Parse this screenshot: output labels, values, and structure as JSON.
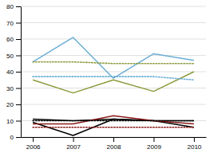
{
  "chart_data": {
    "type": "line",
    "x": [
      2006,
      2007,
      2008,
      2009,
      2010
    ],
    "series": [
      {
        "color": "#6baed6",
        "line_style": "solid",
        "values": [
          46,
          61,
          36,
          51,
          47
        ]
      },
      {
        "color": "#8c9a3c",
        "line_style": "solid",
        "values": [
          35,
          27,
          35,
          28,
          40
        ]
      },
      {
        "color": "#000000",
        "line_style": "solid",
        "values": [
          11,
          10,
          11,
          10,
          10
        ]
      },
      {
        "color": "#000000",
        "line_style": "solid",
        "values": [
          9,
          1,
          11,
          10,
          6
        ]
      },
      {
        "color": "#8b1a1a",
        "line_style": "solid",
        "values": [
          8,
          8,
          13,
          10,
          8
        ]
      },
      {
        "color": "#6baed6",
        "line_style": "dotted",
        "values": [
          37,
          37,
          37,
          37,
          35
        ]
      },
      {
        "color": "#8c9a3c",
        "line_style": "dotted",
        "values": [
          46,
          46,
          45,
          45,
          45
        ]
      },
      {
        "color": "#000000",
        "line_style": "dotted",
        "values": [
          10,
          10,
          10,
          10,
          10
        ]
      },
      {
        "color": "#8b1a1a",
        "line_style": "dotted",
        "values": [
          6,
          6,
          6,
          6,
          6
        ]
      }
    ],
    "xlim": [
      2005.7,
      2010.3
    ],
    "xticks": [
      2006,
      2007,
      2008,
      2009,
      2010
    ],
    "ylim": [
      0,
      80
    ],
    "yticks": [
      0,
      10,
      20,
      30,
      40,
      50,
      60,
      70,
      80
    ],
    "grid": true
  }
}
